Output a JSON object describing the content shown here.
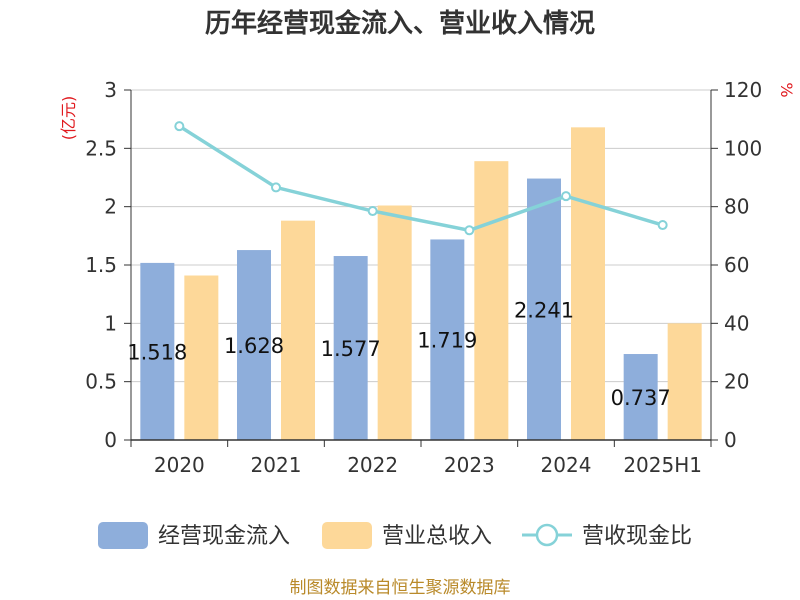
{
  "chart_data": {
    "type": "bar",
    "title": "历年经营现金流入、营业收入情况",
    "categories": [
      "2020",
      "2021",
      "2022",
      "2023",
      "2024",
      "2025H1"
    ],
    "left_axis": {
      "unit": "(亿元)",
      "ylim": [
        0,
        3
      ],
      "ticks": [
        "0",
        "0.5",
        "1",
        "1.5",
        "2",
        "2.5",
        "3"
      ]
    },
    "right_axis": {
      "unit": "%",
      "ylim": [
        0,
        120
      ],
      "ticks": [
        "0",
        "20",
        "40",
        "60",
        "80",
        "100",
        "120"
      ]
    },
    "series": [
      {
        "name": "经营现金流入",
        "type": "bar",
        "axis": "left",
        "color": "#8eaedb",
        "values": [
          1.518,
          1.628,
          1.577,
          1.719,
          2.241,
          0.737
        ],
        "labels": [
          "1.518",
          "1.628",
          "1.577",
          "1.719",
          "2.241",
          "0.737"
        ]
      },
      {
        "name": "营业总收入",
        "type": "bar",
        "axis": "left",
        "color": "#fdd899",
        "values": [
          1.41,
          1.88,
          2.01,
          2.39,
          2.68,
          1.0
        ]
      },
      {
        "name": "营收现金比",
        "type": "line",
        "axis": "right",
        "color": "#85d2d8",
        "values": [
          107.6,
          86.6,
          78.5,
          71.9,
          83.6,
          73.7
        ]
      }
    ],
    "grid": true,
    "legend": "bottom"
  },
  "source": "制图数据来自恒生聚源数据库"
}
